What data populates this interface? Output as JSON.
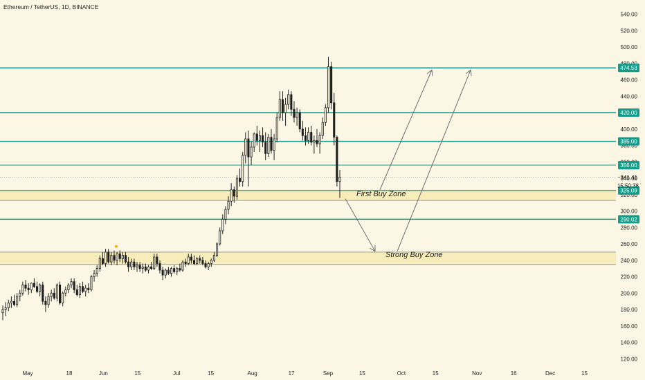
{
  "title": "Ethereum / TetherUS, 1D, BINANCE",
  "colors": {
    "background": "#fbf7e4",
    "level_line": "#129c89",
    "level_label_bg": "#129c89",
    "level_label_text": "#ffffff",
    "zone_fill": "#f6edbb",
    "zone_border": "#9d9d8c",
    "candle": "#1e1e1e",
    "price_label": "#222222",
    "marker": "#f4b400",
    "arrow": "#6b6b6b"
  },
  "chart_data": {
    "type": "candlestick",
    "symbol": "Ethereum / TetherUS",
    "interval": "1D",
    "exchange": "BINANCE",
    "y_axis": {
      "labels": [
        "540.00",
        "520.00",
        "500.00",
        "480.00",
        "460.00",
        "440.00",
        "420.00",
        "400.00",
        "380.00",
        "360.00",
        "340.00",
        "320.00",
        "300.00",
        "280.00",
        "260.00",
        "240.00",
        "220.00",
        "200.00",
        "180.00",
        "160.00",
        "140.00",
        "120.00"
      ],
      "range": [
        108,
        552
      ]
    },
    "x_axis": {
      "labels": [
        "May",
        "18",
        "Jun",
        "15",
        "Jul",
        "15",
        "Aug",
        "17",
        "Sep",
        "15",
        "Oct",
        "15",
        "Nov",
        "16",
        "Dec",
        "15"
      ]
    },
    "horizontal_levels": [
      {
        "label": "474.53",
        "value": 474.53
      },
      {
        "label": "420.00",
        "value": 420.0
      },
      {
        "label": "385.00",
        "value": 385.0
      },
      {
        "label": "356.00",
        "value": 356.0
      },
      {
        "label": "325.09",
        "value": 325.09
      },
      {
        "label": "290.02",
        "value": 290.02
      }
    ],
    "current_price": {
      "label": "341.41",
      "value": 341.41,
      "countdown": "15:50:38"
    },
    "zones": [
      {
        "name": "First Buy Zone",
        "low": 313,
        "high": 325.09
      },
      {
        "name": "Strong Buy Zone",
        "low": 235,
        "high": 250
      }
    ],
    "candles": [
      {
        "o": 176,
        "h": 185,
        "l": 167,
        "c": 180
      },
      {
        "o": 180,
        "h": 189,
        "l": 172,
        "c": 182
      },
      {
        "o": 182,
        "h": 192,
        "l": 178,
        "c": 188
      },
      {
        "o": 188,
        "h": 196,
        "l": 182,
        "c": 190
      },
      {
        "o": 190,
        "h": 198,
        "l": 184,
        "c": 186
      },
      {
        "o": 186,
        "h": 200,
        "l": 183,
        "c": 196
      },
      {
        "o": 196,
        "h": 204,
        "l": 190,
        "c": 200
      },
      {
        "o": 200,
        "h": 214,
        "l": 197,
        "c": 210
      },
      {
        "o": 210,
        "h": 216,
        "l": 202,
        "c": 206
      },
      {
        "o": 206,
        "h": 212,
        "l": 198,
        "c": 204
      },
      {
        "o": 204,
        "h": 213,
        "l": 200,
        "c": 212
      },
      {
        "o": 212,
        "h": 218,
        "l": 206,
        "c": 208
      },
      {
        "o": 208,
        "h": 214,
        "l": 200,
        "c": 202
      },
      {
        "o": 202,
        "h": 212,
        "l": 196,
        "c": 210
      },
      {
        "o": 210,
        "h": 214,
        "l": 186,
        "c": 190
      },
      {
        "o": 190,
        "h": 196,
        "l": 177,
        "c": 186
      },
      {
        "o": 186,
        "h": 200,
        "l": 182,
        "c": 196
      },
      {
        "o": 196,
        "h": 204,
        "l": 190,
        "c": 200
      },
      {
        "o": 200,
        "h": 206,
        "l": 192,
        "c": 194
      },
      {
        "o": 194,
        "h": 212,
        "l": 190,
        "c": 210
      },
      {
        "o": 210,
        "h": 214,
        "l": 186,
        "c": 188
      },
      {
        "o": 188,
        "h": 202,
        "l": 184,
        "c": 200
      },
      {
        "o": 200,
        "h": 208,
        "l": 196,
        "c": 204
      },
      {
        "o": 204,
        "h": 212,
        "l": 200,
        "c": 210
      },
      {
        "o": 210,
        "h": 218,
        "l": 206,
        "c": 214
      },
      {
        "o": 214,
        "h": 218,
        "l": 200,
        "c": 204
      },
      {
        "o": 204,
        "h": 210,
        "l": 196,
        "c": 198
      },
      {
        "o": 198,
        "h": 212,
        "l": 194,
        "c": 208
      },
      {
        "o": 208,
        "h": 214,
        "l": 200,
        "c": 202
      },
      {
        "o": 202,
        "h": 210,
        "l": 196,
        "c": 206
      },
      {
        "o": 206,
        "h": 212,
        "l": 200,
        "c": 204
      },
      {
        "o": 204,
        "h": 222,
        "l": 202,
        "c": 220
      },
      {
        "o": 220,
        "h": 228,
        "l": 214,
        "c": 224
      },
      {
        "o": 224,
        "h": 234,
        "l": 220,
        "c": 230
      },
      {
        "o": 230,
        "h": 246,
        "l": 226,
        "c": 242
      },
      {
        "o": 242,
        "h": 250,
        "l": 234,
        "c": 236
      },
      {
        "o": 236,
        "h": 254,
        "l": 232,
        "c": 250
      },
      {
        "o": 250,
        "h": 254,
        "l": 236,
        "c": 238
      },
      {
        "o": 238,
        "h": 250,
        "l": 234,
        "c": 246
      },
      {
        "o": 246,
        "h": 252,
        "l": 236,
        "c": 240
      },
      {
        "o": 240,
        "h": 250,
        "l": 234,
        "c": 248
      },
      {
        "o": 248,
        "h": 252,
        "l": 238,
        "c": 242
      },
      {
        "o": 242,
        "h": 250,
        "l": 236,
        "c": 246
      },
      {
        "o": 246,
        "h": 250,
        "l": 236,
        "c": 238
      },
      {
        "o": 238,
        "h": 244,
        "l": 226,
        "c": 232
      },
      {
        "o": 232,
        "h": 242,
        "l": 228,
        "c": 238
      },
      {
        "o": 238,
        "h": 242,
        "l": 228,
        "c": 232
      },
      {
        "o": 232,
        "h": 238,
        "l": 226,
        "c": 234
      },
      {
        "o": 234,
        "h": 238,
        "l": 226,
        "c": 230
      },
      {
        "o": 230,
        "h": 236,
        "l": 224,
        "c": 232
      },
      {
        "o": 232,
        "h": 236,
        "l": 226,
        "c": 228
      },
      {
        "o": 228,
        "h": 234,
        "l": 224,
        "c": 232
      },
      {
        "o": 232,
        "h": 238,
        "l": 228,
        "c": 230
      },
      {
        "o": 230,
        "h": 248,
        "l": 228,
        "c": 244
      },
      {
        "o": 244,
        "h": 248,
        "l": 232,
        "c": 236
      },
      {
        "o": 236,
        "h": 240,
        "l": 224,
        "c": 228
      },
      {
        "o": 228,
        "h": 232,
        "l": 216,
        "c": 222
      },
      {
        "o": 222,
        "h": 230,
        "l": 218,
        "c": 228
      },
      {
        "o": 228,
        "h": 232,
        "l": 222,
        "c": 224
      },
      {
        "o": 224,
        "h": 232,
        "l": 220,
        "c": 230
      },
      {
        "o": 230,
        "h": 234,
        "l": 224,
        "c": 226
      },
      {
        "o": 226,
        "h": 232,
        "l": 222,
        "c": 230
      },
      {
        "o": 230,
        "h": 236,
        "l": 226,
        "c": 228
      },
      {
        "o": 228,
        "h": 240,
        "l": 226,
        "c": 238
      },
      {
        "o": 238,
        "h": 242,
        "l": 232,
        "c": 236
      },
      {
        "o": 236,
        "h": 248,
        "l": 234,
        "c": 244
      },
      {
        "o": 244,
        "h": 248,
        "l": 236,
        "c": 240
      },
      {
        "o": 240,
        "h": 246,
        "l": 234,
        "c": 236
      },
      {
        "o": 236,
        "h": 244,
        "l": 234,
        "c": 242
      },
      {
        "o": 242,
        "h": 246,
        "l": 236,
        "c": 240
      },
      {
        "o": 240,
        "h": 244,
        "l": 234,
        "c": 236
      },
      {
        "o": 236,
        "h": 240,
        "l": 230,
        "c": 232
      },
      {
        "o": 232,
        "h": 238,
        "l": 228,
        "c": 236
      },
      {
        "o": 236,
        "h": 242,
        "l": 232,
        "c": 240
      },
      {
        "o": 240,
        "h": 250,
        "l": 238,
        "c": 246
      },
      {
        "o": 246,
        "h": 262,
        "l": 244,
        "c": 260
      },
      {
        "o": 260,
        "h": 280,
        "l": 258,
        "c": 276
      },
      {
        "o": 276,
        "h": 296,
        "l": 272,
        "c": 290
      },
      {
        "o": 290,
        "h": 306,
        "l": 284,
        "c": 302
      },
      {
        "o": 302,
        "h": 318,
        "l": 296,
        "c": 312
      },
      {
        "o": 312,
        "h": 334,
        "l": 306,
        "c": 326
      },
      {
        "o": 326,
        "h": 330,
        "l": 310,
        "c": 318
      },
      {
        "o": 318,
        "h": 344,
        "l": 314,
        "c": 340
      },
      {
        "o": 340,
        "h": 352,
        "l": 330,
        "c": 336
      },
      {
        "o": 336,
        "h": 372,
        "l": 330,
        "c": 368
      },
      {
        "o": 368,
        "h": 396,
        "l": 358,
        "c": 388
      },
      {
        "o": 388,
        "h": 398,
        "l": 330,
        "c": 366
      },
      {
        "o": 366,
        "h": 384,
        "l": 356,
        "c": 378
      },
      {
        "o": 378,
        "h": 396,
        "l": 372,
        "c": 394
      },
      {
        "o": 394,
        "h": 404,
        "l": 380,
        "c": 386
      },
      {
        "o": 386,
        "h": 398,
        "l": 372,
        "c": 392
      },
      {
        "o": 392,
        "h": 402,
        "l": 378,
        "c": 384
      },
      {
        "o": 384,
        "h": 396,
        "l": 362,
        "c": 370
      },
      {
        "o": 370,
        "h": 394,
        "l": 366,
        "c": 390
      },
      {
        "o": 390,
        "h": 400,
        "l": 370,
        "c": 374
      },
      {
        "o": 374,
        "h": 394,
        "l": 362,
        "c": 388
      },
      {
        "o": 388,
        "h": 420,
        "l": 384,
        "c": 414
      },
      {
        "o": 414,
        "h": 446,
        "l": 410,
        "c": 436
      },
      {
        "o": 436,
        "h": 446,
        "l": 410,
        "c": 420
      },
      {
        "o": 420,
        "h": 438,
        "l": 404,
        "c": 430
      },
      {
        "o": 430,
        "h": 448,
        "l": 424,
        "c": 442
      },
      {
        "o": 442,
        "h": 446,
        "l": 416,
        "c": 424
      },
      {
        "o": 424,
        "h": 434,
        "l": 408,
        "c": 414
      },
      {
        "o": 414,
        "h": 426,
        "l": 404,
        "c": 420
      },
      {
        "o": 420,
        "h": 424,
        "l": 396,
        "c": 400
      },
      {
        "o": 400,
        "h": 410,
        "l": 386,
        "c": 392
      },
      {
        "o": 392,
        "h": 402,
        "l": 380,
        "c": 386
      },
      {
        "o": 386,
        "h": 402,
        "l": 382,
        "c": 396
      },
      {
        "o": 396,
        "h": 404,
        "l": 380,
        "c": 384
      },
      {
        "o": 384,
        "h": 392,
        "l": 370,
        "c": 386
      },
      {
        "o": 386,
        "h": 400,
        "l": 378,
        "c": 382
      },
      {
        "o": 382,
        "h": 396,
        "l": 370,
        "c": 392
      },
      {
        "o": 392,
        "h": 414,
        "l": 388,
        "c": 408
      },
      {
        "o": 408,
        "h": 430,
        "l": 404,
        "c": 426
      },
      {
        "o": 426,
        "h": 488,
        "l": 420,
        "c": 476
      },
      {
        "o": 476,
        "h": 482,
        "l": 424,
        "c": 432
      },
      {
        "o": 432,
        "h": 444,
        "l": 380,
        "c": 390
      },
      {
        "o": 390,
        "h": 392,
        "l": 330,
        "c": 336
      },
      {
        "o": 336,
        "h": 350,
        "l": 316,
        "c": 341.41
      }
    ],
    "annotations": [
      {
        "type": "text",
        "text": "First Buy Zone"
      },
      {
        "type": "text",
        "text": "Strong Buy Zone"
      },
      {
        "type": "arrow",
        "desc": "from last candle down to strong buy zone"
      },
      {
        "type": "arrow",
        "desc": "from first buy zone up to 474.53"
      },
      {
        "type": "arrow",
        "desc": "from strong buy zone up to 474.53"
      }
    ]
  }
}
